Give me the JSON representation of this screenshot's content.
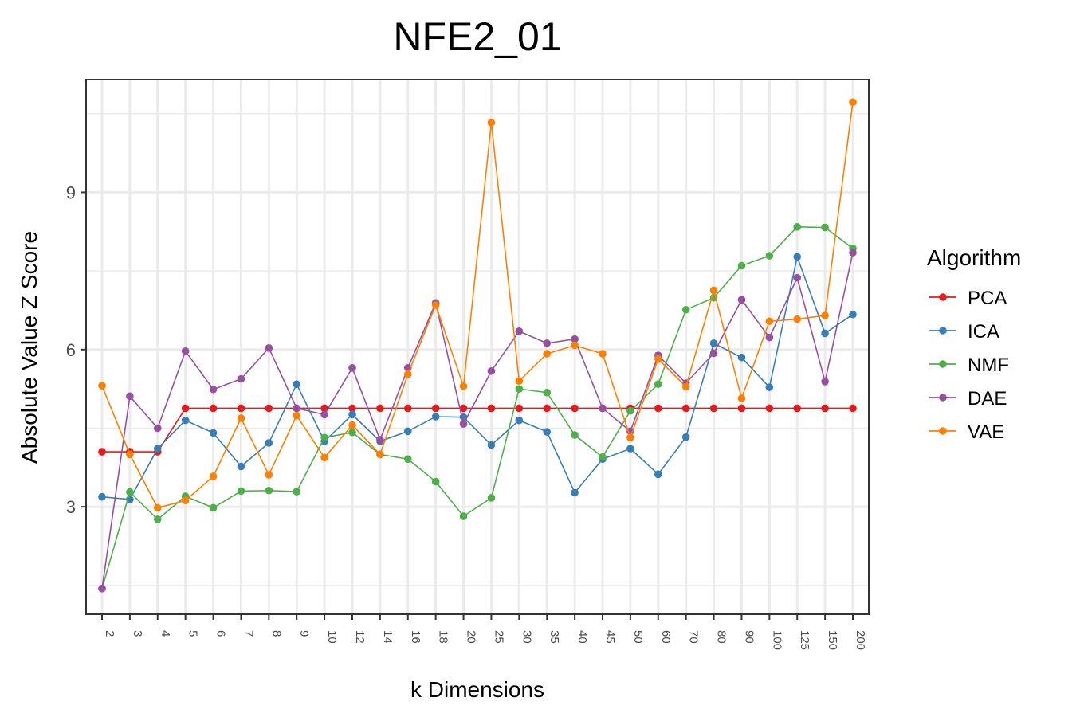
{
  "chart_data": {
    "type": "line",
    "title": "NFE2_01",
    "xlabel": "k Dimensions",
    "ylabel": "Absolute Value Z Score",
    "categories": [
      "2",
      "3",
      "4",
      "5",
      "6",
      "7",
      "8",
      "9",
      "10",
      "12",
      "14",
      "16",
      "18",
      "20",
      "25",
      "30",
      "35",
      "40",
      "45",
      "50",
      "60",
      "70",
      "80",
      "90",
      "100",
      "125",
      "150",
      "200"
    ],
    "yticks": [
      3,
      6,
      9
    ],
    "ylim": [
      0.95,
      11.15
    ],
    "grid": true,
    "legend": {
      "title": "Algorithm",
      "position": "right"
    },
    "series": [
      {
        "name": "PCA",
        "color": "#e41a1c",
        "values": [
          4.05,
          4.05,
          4.05,
          4.88,
          4.88,
          4.88,
          4.88,
          4.88,
          4.88,
          4.88,
          4.88,
          4.88,
          4.88,
          4.88,
          4.88,
          4.88,
          4.88,
          4.88,
          4.88,
          4.88,
          4.88,
          4.88,
          4.88,
          4.88,
          4.88,
          4.88,
          4.88,
          4.88
        ]
      },
      {
        "name": "ICA",
        "color": "#377eb8",
        "values": [
          3.19,
          3.14,
          4.11,
          4.65,
          4.41,
          3.77,
          4.22,
          5.34,
          4.25,
          4.76,
          4.25,
          4.44,
          4.72,
          4.71,
          4.18,
          4.65,
          4.43,
          3.27,
          3.91,
          4.11,
          3.62,
          4.33,
          6.12,
          5.85,
          5.28,
          7.77,
          6.31,
          6.67
        ]
      },
      {
        "name": "NMF",
        "color": "#4daf4a",
        "values": [
          1.44,
          3.28,
          2.76,
          3.2,
          2.98,
          3.3,
          3.31,
          3.29,
          4.32,
          4.42,
          4.0,
          3.91,
          3.48,
          2.82,
          3.17,
          5.25,
          5.18,
          4.37,
          3.95,
          4.83,
          5.34,
          6.76,
          6.99,
          7.6,
          7.79,
          8.34,
          8.33,
          7.93
        ]
      },
      {
        "name": "DAE",
        "color": "#984ea3",
        "values": [
          1.44,
          5.11,
          4.5,
          5.97,
          5.24,
          5.44,
          6.03,
          4.88,
          4.76,
          5.65,
          4.28,
          5.65,
          6.89,
          4.58,
          5.59,
          6.35,
          6.12,
          6.2,
          4.88,
          4.44,
          5.89,
          5.36,
          5.93,
          6.95,
          6.23,
          7.37,
          5.39,
          7.85
        ]
      },
      {
        "name": "VAE",
        "color": "#ff7f00",
        "values": [
          5.31,
          4.0,
          2.98,
          3.12,
          3.58,
          4.69,
          3.61,
          4.74,
          3.94,
          4.56,
          4.0,
          5.53,
          6.85,
          5.3,
          10.33,
          5.4,
          5.92,
          6.08,
          5.92,
          4.32,
          5.82,
          5.29,
          7.13,
          5.07,
          6.54,
          6.58,
          6.65,
          10.72
        ]
      }
    ]
  }
}
